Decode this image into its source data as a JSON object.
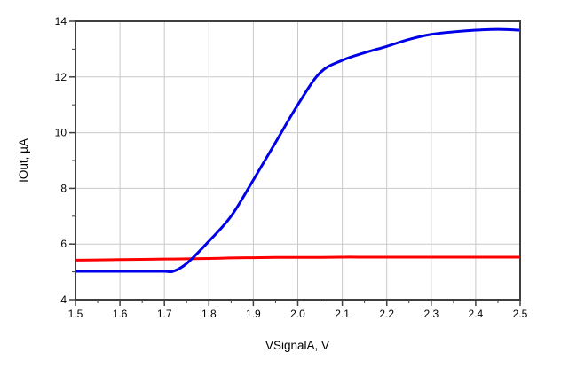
{
  "chart_data": {
    "type": "line",
    "title": "",
    "xlabel": "VSignalA, V",
    "ylabel": "IOut, µA",
    "xlim": [
      1.5,
      2.5
    ],
    "ylim": [
      4,
      14
    ],
    "grid": "major-only",
    "legend_position": "none",
    "x_ticks": {
      "major": [
        1.5,
        1.6,
        1.7,
        1.8,
        1.9,
        2.0,
        2.1,
        2.2,
        2.3,
        2.4,
        2.5
      ],
      "labels": [
        "1.5",
        "1.6",
        "1.7",
        "1.8",
        "1.9",
        "2.0",
        "2.1",
        "2.2",
        "2.3",
        "2.4",
        "2.5"
      ],
      "minor_step": 0.05
    },
    "y_ticks": {
      "major": [
        4,
        6,
        8,
        10,
        12,
        14
      ],
      "labels": [
        "4",
        "6",
        "8",
        "10",
        "12",
        "14"
      ],
      "minor_step": 1
    },
    "x": [
      1.5,
      1.55,
      1.6,
      1.65,
      1.7,
      1.72,
      1.75,
      1.8,
      1.85,
      1.9,
      1.95,
      2.0,
      2.05,
      2.1,
      2.15,
      2.2,
      2.25,
      2.3,
      2.35,
      2.4,
      2.45,
      2.5
    ],
    "series": [
      {
        "name": "red-trace",
        "color": "#FF0000",
        "width": 3,
        "values": [
          5.42,
          5.43,
          5.44,
          5.45,
          5.46,
          5.46,
          5.47,
          5.48,
          5.5,
          5.51,
          5.52,
          5.52,
          5.52,
          5.53,
          5.53,
          5.53,
          5.53,
          5.53,
          5.53,
          5.53,
          5.53,
          5.53
        ]
      },
      {
        "name": "blue-trace",
        "color": "#0000E8",
        "width": 3,
        "values": [
          5.02,
          5.02,
          5.02,
          5.02,
          5.02,
          5.02,
          5.3,
          6.1,
          7.0,
          8.3,
          9.65,
          11.0,
          12.15,
          12.6,
          12.87,
          13.1,
          13.35,
          13.53,
          13.62,
          13.68,
          13.71,
          13.68
        ]
      }
    ],
    "colors": {
      "grid": "#C9C9C9",
      "frame": "#3F3F3F",
      "tick": "#3F3F3F",
      "background": "#FFFFFF",
      "text": "#000000"
    }
  }
}
